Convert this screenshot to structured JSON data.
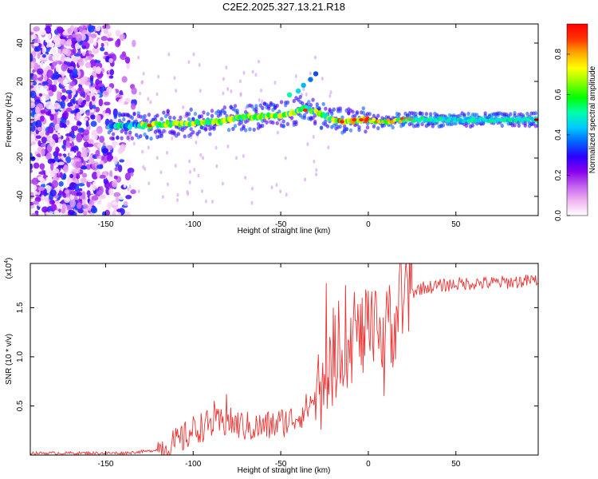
{
  "title": "C2E2.2025.327.13.21.R18",
  "chart_data": [
    {
      "type": "heatmap",
      "xlabel": "Height of straight line (km)",
      "ylabel": "Frequency (Hz)",
      "xlim": [
        -193,
        97
      ],
      "ylim": [
        -50,
        50
      ],
      "xticks": [
        -150,
        -100,
        -50,
        0,
        50
      ],
      "xtick_labels": [
        "-150",
        "-100",
        "-50",
        "0",
        "50"
      ],
      "yticks": [
        -40,
        -20,
        0,
        20,
        40
      ],
      "ytick_labels": [
        "-40",
        "-20",
        "0",
        "20",
        "40"
      ],
      "colorbar": {
        "label": "Normalized spectral amplitude",
        "range": [
          0.0,
          0.95
        ],
        "ticks": [
          0.0,
          0.2,
          0.4,
          0.6,
          0.8
        ],
        "tick_labels": [
          "0.0",
          "0.2",
          "0.4",
          "0.6",
          "0.8"
        ],
        "colors": [
          "#ffffff",
          "#f1b4f1",
          "#c261f0",
          "#8800ee",
          "#2b00ff",
          "#0066ff",
          "#00ccff",
          "#00ffaa",
          "#00ff00",
          "#88ff00",
          "#ffff00",
          "#ffaa00",
          "#ff3300",
          "#ff0000"
        ]
      },
      "ridge": {
        "x": [
          -145,
          -135,
          -125,
          -115,
          -105,
          -95,
          -85,
          -75,
          -65,
          -55,
          -45,
          -40,
          -35,
          -30,
          -25,
          -20,
          -15,
          -10,
          -5,
          0,
          5,
          10,
          20,
          40,
          60,
          80,
          97
        ],
        "freq": [
          -3,
          -3,
          -3,
          -2,
          -2,
          -1,
          -1,
          1,
          1.5,
          2,
          3,
          5,
          6,
          4,
          2,
          0,
          -1,
          -1,
          0,
          0,
          -1,
          -1,
          0,
          0,
          0,
          0,
          0
        ]
      },
      "side_features": [
        {
          "x": -45,
          "freq": 13
        },
        {
          "x": -40,
          "freq": 15
        },
        {
          "x": -37,
          "freq": 18
        },
        {
          "x": -33,
          "freq": 21
        },
        {
          "x": -30,
          "freq": 24
        }
      ],
      "noise_region_x": [
        -193,
        -140
      ]
    },
    {
      "type": "line",
      "xlabel": "Height of straight line (km)",
      "ylabel": "SNR (10 * v/v)",
      "y_scale_label": "(x10",
      "y_scale_exp": "4",
      "xlim": [
        -193,
        97
      ],
      "ylim": [
        0,
        19500
      ],
      "xticks": [
        -150,
        -100,
        -50,
        0,
        50
      ],
      "xtick_labels": [
        "-150",
        "-100",
        "-50",
        "0",
        "50"
      ],
      "yticks": [
        5000,
        10000,
        15000
      ],
      "ytick_labels": [
        "0.5",
        "1.0",
        "1.5"
      ],
      "color": "#ee3333",
      "x_keys": [
        -193,
        -140,
        -125,
        -115,
        -110,
        -105,
        -100,
        -95,
        -90,
        -85,
        -80,
        -75,
        -70,
        -65,
        -60,
        -55,
        -50,
        -45,
        -40,
        -35,
        -30,
        -25,
        -20,
        -15,
        -10,
        -5,
        0,
        5,
        10,
        15,
        20,
        25,
        30,
        40,
        50,
        60,
        70,
        80,
        90,
        97
      ],
      "y_keys": [
        200,
        200,
        400,
        800,
        1200,
        1800,
        2500,
        2900,
        3100,
        3200,
        3300,
        3100,
        2900,
        2800,
        2900,
        3000,
        3300,
        3500,
        4000,
        4800,
        6000,
        7500,
        9500,
        11000,
        11500,
        12000,
        12500,
        12300,
        12500,
        13500,
        15500,
        16500,
        17000,
        17200,
        17400,
        17500,
        17500,
        17600,
        17700,
        17800
      ],
      "spikes": [
        {
          "x": -81,
          "y": 6200
        },
        {
          "x": -88,
          "y": 5500
        },
        {
          "x": -24,
          "y": 17500
        },
        {
          "x": -20,
          "y": 15000
        },
        {
          "x": -13,
          "y": 17300
        },
        {
          "x": -8,
          "y": 16600
        },
        {
          "x": 12,
          "y": 17300
        },
        {
          "x": 9,
          "y": 6000
        }
      ]
    }
  ]
}
